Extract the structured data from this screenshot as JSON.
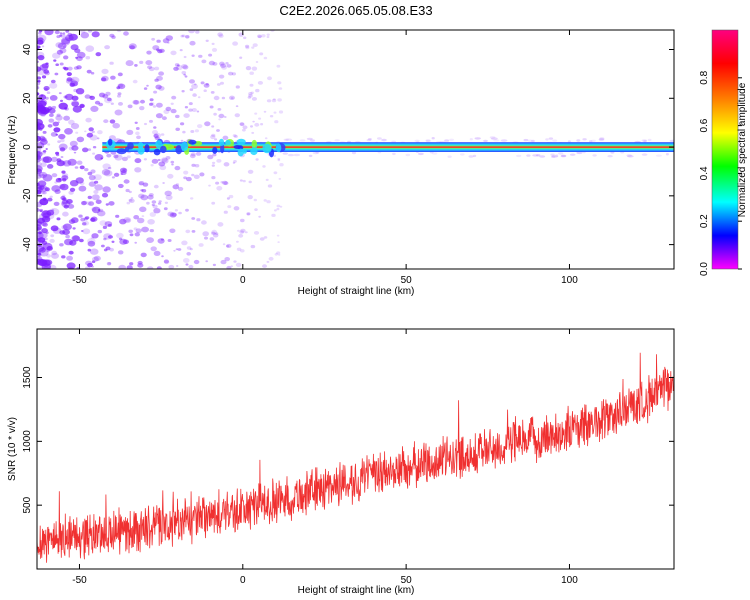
{
  "figure": {
    "title": "C2E2.2026.065.05.08.E33"
  },
  "colors": {
    "snr_line": "#f03030",
    "axis": "#000000",
    "band_center": "#ff2a2a",
    "band_edge": "#2f3cff",
    "noise": "#7a1cff"
  },
  "chart_data": [
    {
      "type": "heatmap",
      "title": "",
      "xlabel": "Height of straight line (km)",
      "ylabel": "Frequency (Hz)",
      "xlim": [
        -63,
        132
      ],
      "ylim": [
        -50,
        48
      ],
      "xticks": [
        -50,
        0,
        50,
        100
      ],
      "yticks": [
        -40,
        -20,
        0,
        20,
        40
      ],
      "grid": false,
      "colorbar": {
        "label": "Normalized spectral amplitude",
        "range": [
          0,
          1
        ],
        "ticks": [
          0.0,
          0.2,
          0.4,
          0.6,
          0.8
        ],
        "colormap": [
          "#ff00ff",
          "#0000ff",
          "#00ffff",
          "#00ff00",
          "#ffff00",
          "#ff8000",
          "#ff0000",
          "#ff0080"
        ]
      },
      "band": {
        "center_hz": 0,
        "half_width_hz": 2,
        "x_start_km": -43,
        "x_end_km": 132
      },
      "noise_extent_km": [
        -63,
        12
      ]
    },
    {
      "type": "line",
      "title": "",
      "xlabel": "Height of straight line (km)",
      "ylabel": "SNR (10 * v/v)",
      "xlim": [
        -63,
        132
      ],
      "ylim": [
        0,
        1880
      ],
      "xticks": [
        -50,
        0,
        50,
        100
      ],
      "yticks": [
        500,
        1000,
        1500
      ],
      "grid": false,
      "series": [
        {
          "name": "",
          "x": [
            -63,
            -55,
            -45,
            -35,
            -25,
            -15,
            -5,
            5,
            15,
            25,
            35,
            45,
            55,
            65,
            75,
            85,
            95,
            105,
            115,
            125,
            132
          ],
          "y": [
            220,
            250,
            270,
            300,
            330,
            380,
            430,
            500,
            560,
            640,
            700,
            760,
            820,
            880,
            930,
            990,
            1050,
            1120,
            1220,
            1350,
            1450
          ],
          "spread": 170
        }
      ]
    }
  ]
}
